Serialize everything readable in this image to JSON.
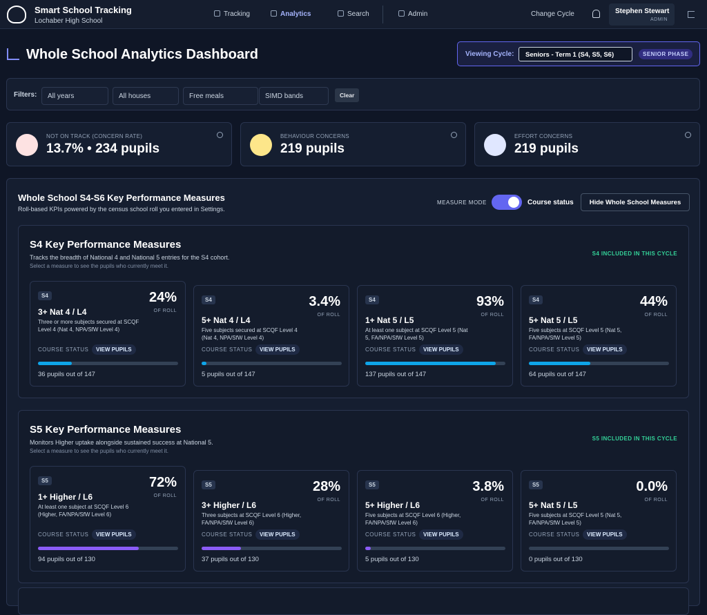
{
  "nav": {
    "brand": "Smart School Tracking",
    "school": "Lochaber High School",
    "items": [
      "Tracking",
      "Analytics",
      "Search",
      "Admin"
    ],
    "change_cycle": "Change Cycle",
    "user": "Stephen Stewart",
    "role": "ADMIN"
  },
  "header": {
    "title": "Whole School Analytics Dashboard",
    "cycle_label": "Viewing Cycle:",
    "cycle_value": "Seniors - Term 1 (S4, S5, S6)",
    "phase": "SENIOR PHASE"
  },
  "filters": {
    "label": "Filters:",
    "options": [
      "All years",
      "All houses",
      "Free meals",
      "SIMD bands"
    ],
    "clear": "Clear"
  },
  "stats": [
    {
      "label": "NOT ON TRACK (CONCERN RATE)",
      "value": "13.7% • 234 pupils"
    },
    {
      "label": "BEHAVIOUR CONCERNS",
      "value": "219 pupils"
    },
    {
      "label": "EFFORT CONCERNS",
      "value": "219 pupils"
    }
  ],
  "section": {
    "title": "Whole School S4-S6 Key Performance Measures",
    "subtitle": "Roll-based KPIs powered by the census school roll you entered in Settings.",
    "mode_label": "MEASURE MODE",
    "mode_value": "Course status",
    "hide_button": "Hide Whole School Measures"
  },
  "labels": {
    "of_roll": "OF ROLL",
    "course_status": "COURSE STATUS",
    "view_pupils": "VIEW PUPILS"
  },
  "groups": [
    {
      "title": "S4 Key Performance Measures",
      "description": "Tracks the breadth of National 4 and National 5 entries for the S4 cohort.",
      "hint": "Select a measure to see the pupils who currently meet it.",
      "badge": "S4 INCLUDED IN THIS CYCLE",
      "color": "#0ea5e9",
      "measures": [
        {
          "tag": "S4",
          "name": "3+ Nat 4 / L4",
          "percent": {
            "value": 24,
            "label": "24%"
          },
          "description": "Three or more subjects secured at SCQF Level 4 (Nat 4, NPA/SfW Level 4)",
          "count": "36 pupils out of 147"
        },
        {
          "tag": "S4",
          "name": "5+ Nat 4 / L4",
          "percent": {
            "value": 3.4,
            "label": "3.4%"
          },
          "description": "Five subjects secured at SCQF Level 4 (Nat 4, NPA/SfW Level 4)",
          "count": "5 pupils out of 147"
        },
        {
          "tag": "S4",
          "name": "1+ Nat 5 / L5",
          "percent": {
            "value": 93,
            "label": "93%"
          },
          "description": "At least one subject at SCQF Level 5 (Nat 5, FA/NPA/SfW Level 5)",
          "count": "137 pupils out of 147"
        },
        {
          "tag": "S4",
          "name": "5+ Nat 5 / L5",
          "percent": {
            "value": 44,
            "label": "44%"
          },
          "description": "Five subjects at SCQF Level 5 (Nat 5, FA/NPA/SfW Level 5)",
          "count": "64 pupils out of 147"
        }
      ]
    },
    {
      "title": "S5 Key Performance Measures",
      "description": "Monitors Higher uptake alongside sustained success at National 5.",
      "hint": "Select a measure to see the pupils who currently meet it.",
      "badge": "S5 INCLUDED IN THIS CYCLE",
      "color": "#8b5cf6",
      "measures": [
        {
          "tag": "S5",
          "name": "1+ Higher / L6",
          "percent": {
            "value": 72,
            "label": "72%"
          },
          "description": "At least one subject at SCQF Level 6 (Higher, FA/NPA/SfW Level 6)",
          "count": "94 pupils out of 130"
        },
        {
          "tag": "S5",
          "name": "3+ Higher / L6",
          "percent": {
            "value": 28,
            "label": "28%"
          },
          "description": "Three subjects at SCQF Level 6 (Higher, FA/NPA/SfW Level 6)",
          "count": "37 pupils out of 130"
        },
        {
          "tag": "S5",
          "name": "5+ Higher / L6",
          "percent": {
            "value": 3.8,
            "label": "3.8%"
          },
          "description": "Five subjects at SCQF Level 6 (Higher, FA/NPA/SfW Level 6)",
          "count": "5 pupils out of 130"
        },
        {
          "tag": "S5",
          "name": "5+ Nat 5 / L5",
          "percent": {
            "value": 0.0,
            "label": "0.0%"
          },
          "description": "Five subjects at SCQF Level 5 (Nat 5, FA/NPA/SfW Level 5)",
          "count": "0 pupils out of 130"
        }
      ]
    }
  ]
}
